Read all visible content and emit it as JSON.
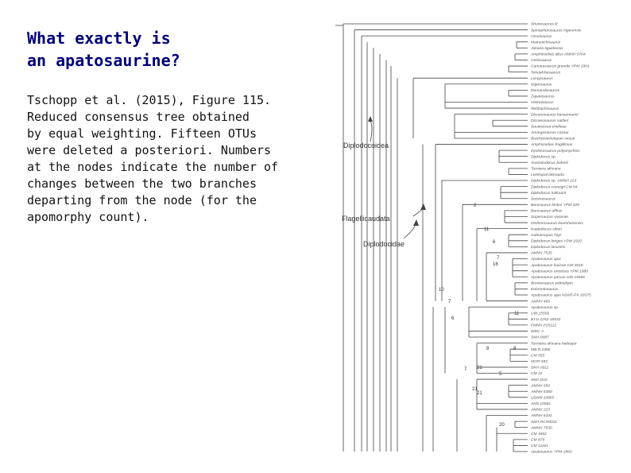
{
  "slide": {
    "title_lines": [
      "What exactly is",
      "an apatosaurine?"
    ],
    "caption_lines": [
      "Tschopp et al. (2015), Figure 115.",
      "Reduced consensus tree obtained",
      "by equal weighting. Fifteen OTUs",
      "were deleted a posteriori. Numbers",
      "at the nodes indicate the number of",
      "changes between the two branches",
      "departing from the node (for the",
      "apomorphy count)."
    ],
    "colors": {
      "title": "#00007a",
      "caption": "#111111",
      "tree": "#444444"
    }
  },
  "tree": {
    "clade_labels": {
      "diplodocoidea": "Diplodocoidea",
      "flagellicaudata": "Flagellicaudata",
      "diplodocidae": "Diplodocidae"
    },
    "taxa": [
      "Shunosaurus lii",
      "Spinophorosaurus nigerensis",
      "Omeisaurus",
      "Mamenchisaurus",
      "Jobaria tiguidensis",
      "Amphicoelias altus AMNH 5764",
      "Cetiosaurus",
      "Camarasaurus grandis YPM 1901",
      "Tehuelchesaurus",
      "Limaysaurus",
      "Nigersaurus",
      "Demandasaurus",
      "Zapalasaurus",
      "Histriasaurus",
      "Rebbachisaurus",
      "Dicraeosaurus hansemanni",
      "Dicraeosaurus sattleri",
      "Suuwassea emilieae",
      "Amargasaurus cazaui",
      "Brachytrachelopan mesai",
      "Amphicoelias fragillimus",
      "Dyslocosaurus polyonychius",
      "Diplodocus sp.",
      "Australodocus bohetii",
      "Tornieria africana",
      "Leinkupal laticauda",
      "Diplodocus sp. AMNH 223",
      "Diplodocus carnegii CM 84",
      "Diplodocus hallorum",
      "Seismosaurus",
      "Barosaurus lentus YPM 429",
      "Barosaurus affinis",
      "Supersaurus vivianae",
      "Dinheirosaurus lourinhanensis",
      "Kaatedocus siberi",
      "Galeamopus hayi",
      "Diplodocus longus YPM 1920",
      "Diplodocus lacustris",
      "AMNH 7535",
      "Apatosaurus ajax",
      "Apatosaurus louisae CM 3018",
      "Apatosaurus excelsus YPM 1980",
      "Apatosaurus parvus UW 15556",
      "Brontosaurus yahnahpin",
      "Eobrontosaurus",
      "Apatosaurus ajax NSMT-PV 20375",
      "AMNH 460",
      "Apatosaurus sp.",
      "UW 15556",
      "BYU 1252-18531",
      "FMNH P25112",
      "WDC A",
      "SMA 0087",
      "Tornieria africana holotype",
      "MB.R.2386",
      "CM 555",
      "MOR 592",
      "SMA 0011",
      "CM 21",
      "SMA D16",
      "AMNH 550",
      "AMNH 5380",
      "USNM 10865",
      "ANS 10661",
      "AMNH 223",
      "AMNH 6341",
      "SMA RCR0011",
      "AMNH 7530",
      "CM 3452",
      "CM 879",
      "CM 11161",
      "Apatosaurus YPM 1860"
    ],
    "node_numbers": [
      "2",
      "11",
      "6",
      "7",
      "16",
      "10",
      "7",
      "11",
      "6",
      "8",
      "7",
      "21",
      "5",
      "21",
      "21",
      "20",
      "8"
    ]
  }
}
